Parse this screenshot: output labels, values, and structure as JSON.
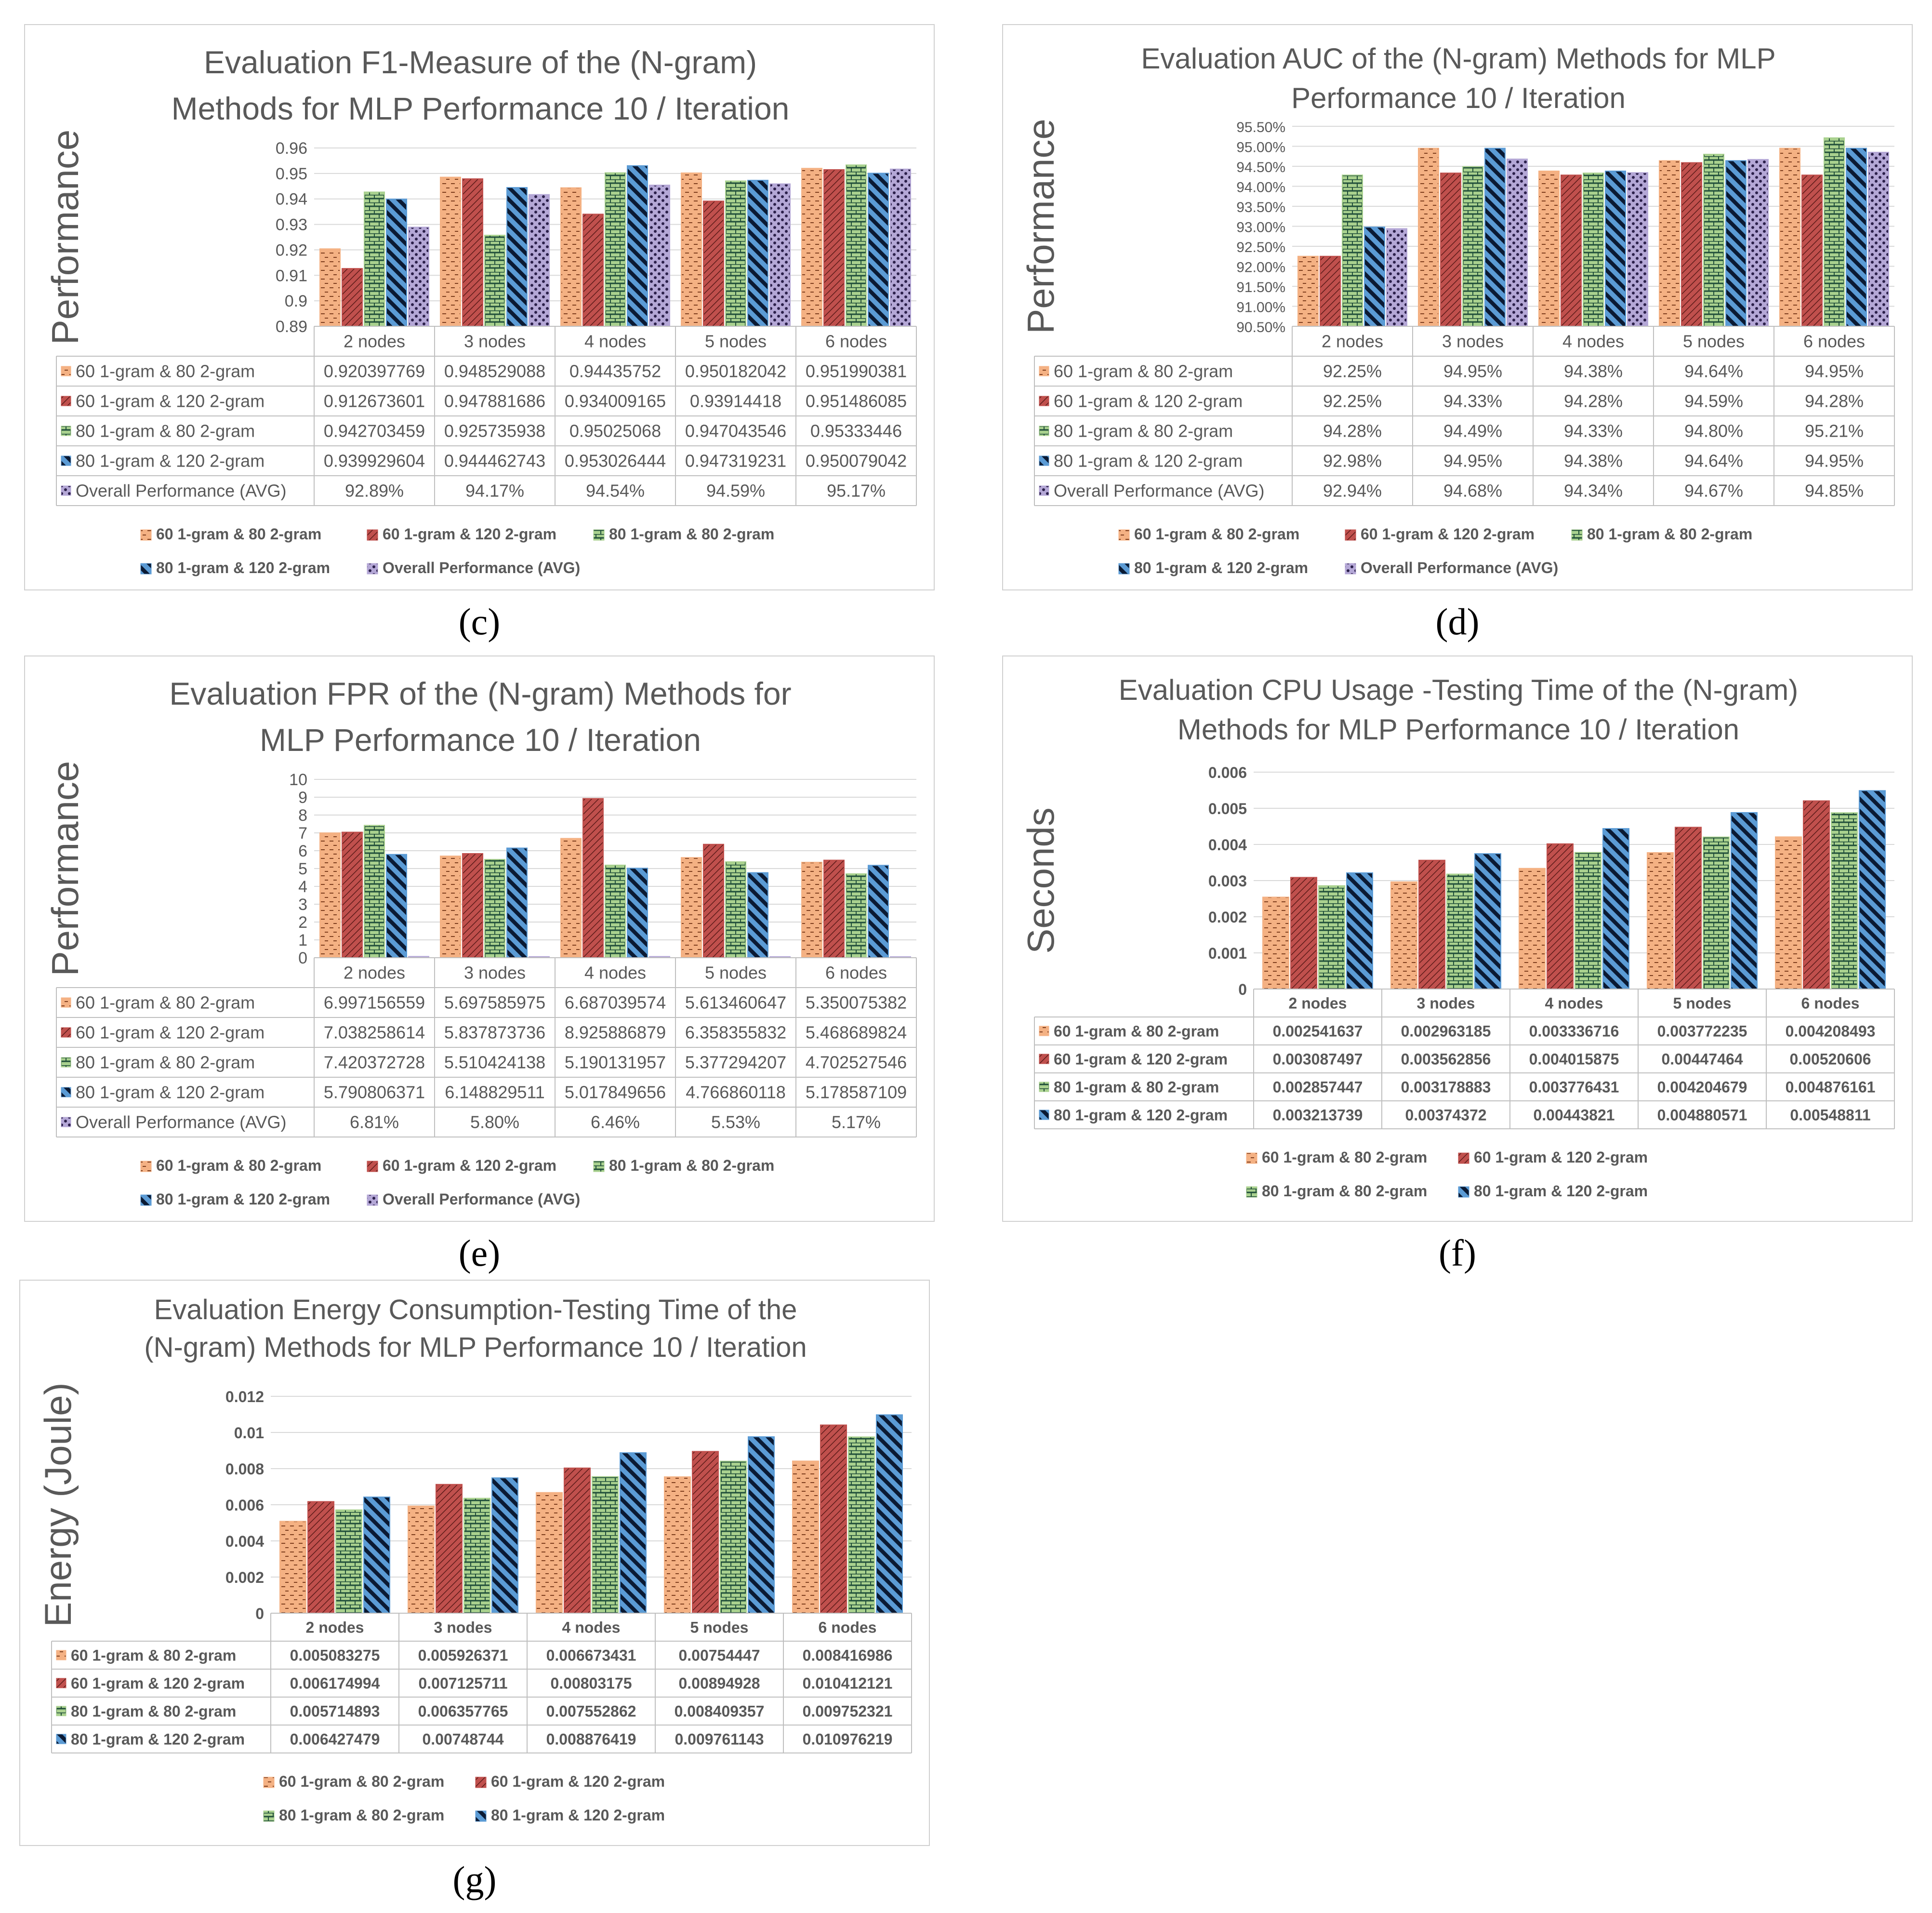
{
  "colors": {
    "s1": "#f4b183",
    "s2": "#c0504d",
    "s3": "#a9d18e",
    "s4": "#5b9bd5",
    "s5": "#b4a7d6",
    "grid": "#d9d9d9",
    "axis_text": "#595959"
  },
  "panels": [
    {
      "id": "c",
      "label": "(c)"
    },
    {
      "id": "d",
      "label": "(d)"
    },
    {
      "id": "e",
      "label": "(e)"
    },
    {
      "id": "f",
      "label": "(f)"
    },
    {
      "id": "g",
      "label": "(g)"
    }
  ],
  "chart_data": [
    {
      "type": "bar",
      "title": [
        "Evaluation F1-Measure of the (N-gram)",
        "Methods for MLP Performance  10 / Iteration"
      ],
      "ylabel": "Performance",
      "ylim": [
        0.89,
        0.96
      ],
      "yticks": [
        "0.89",
        "0.9",
        "0.91",
        "0.92",
        "0.93",
        "0.94",
        "0.95",
        "0.96"
      ],
      "categories": [
        "2 nodes",
        "3 nodes",
        "4 nodes",
        "5 nodes",
        "6 nodes"
      ],
      "series": [
        {
          "name": "60 1-gram & 80 2-gram",
          "values": [
            0.920397769,
            0.948529088,
            0.94435752,
            0.950182042,
            0.951990381
          ],
          "table": [
            "0.920397769",
            "0.948529088",
            "0.94435752",
            "0.950182042",
            "0.951990381"
          ]
        },
        {
          "name": "60 1-gram & 120 2-gram",
          "values": [
            0.912673601,
            0.947881686,
            0.934009165,
            0.93914418,
            0.951486085
          ],
          "table": [
            "0.912673601",
            "0.947881686",
            "0.934009165",
            "0.93914418",
            "0.951486085"
          ]
        },
        {
          "name": "80 1-gram & 80 2-gram",
          "values": [
            0.942703459,
            0.925735938,
            0.95025068,
            0.947043546,
            0.95333446
          ],
          "table": [
            "0.942703459",
            "0.925735938",
            "0.95025068",
            "0.947043546",
            "0.95333446"
          ]
        },
        {
          "name": "80 1-gram & 120 2-gram",
          "values": [
            0.939929604,
            0.944462743,
            0.953026444,
            0.947319231,
            0.950079042
          ],
          "table": [
            "0.939929604",
            "0.944462743",
            "0.953026444",
            "0.947319231",
            "0.950079042"
          ]
        },
        {
          "name": "Overall Performance (AVG)",
          "values": [
            0.9289,
            0.9417,
            0.9454,
            0.9459,
            0.9517
          ],
          "table": [
            "92.89%",
            "94.17%",
            "94.54%",
            "94.59%",
            "95.17%"
          ]
        }
      ]
    },
    {
      "type": "bar",
      "title": [
        "Evaluation AUC of the (N-gram) Methods for MLP",
        "Performance  10 / Iteration"
      ],
      "ylabel": "Performance",
      "ylim": [
        0.905,
        0.955
      ],
      "yticks": [
        "90.50%",
        "91.00%",
        "91.50%",
        "92.00%",
        "92.50%",
        "93.00%",
        "93.50%",
        "94.00%",
        "94.50%",
        "95.00%",
        "95.50%"
      ],
      "categories": [
        "2 nodes",
        "3 nodes",
        "4 nodes",
        "5 nodes",
        "6 nodes"
      ],
      "series": [
        {
          "name": "60 1-gram & 80 2-gram",
          "values": [
            0.9225,
            0.9495,
            0.9438,
            0.9464,
            0.9495
          ],
          "table": [
            "92.25%",
            "94.95%",
            "94.38%",
            "94.64%",
            "94.95%"
          ]
        },
        {
          "name": "60 1-gram & 120 2-gram",
          "values": [
            0.9225,
            0.9433,
            0.9428,
            0.9459,
            0.9428
          ],
          "table": [
            "92.25%",
            "94.33%",
            "94.28%",
            "94.59%",
            "94.28%"
          ]
        },
        {
          "name": "80 1-gram & 80 2-gram",
          "values": [
            0.9428,
            0.9449,
            0.9433,
            0.948,
            0.9521
          ],
          "table": [
            "94.28%",
            "94.49%",
            "94.33%",
            "94.80%",
            "95.21%"
          ]
        },
        {
          "name": "80 1-gram & 120 2-gram",
          "values": [
            0.9298,
            0.9495,
            0.9438,
            0.9464,
            0.9495
          ],
          "table": [
            "92.98%",
            "94.95%",
            "94.38%",
            "94.64%",
            "94.95%"
          ]
        },
        {
          "name": "Overall Performance (AVG)",
          "values": [
            0.9294,
            0.9468,
            0.9434,
            0.9467,
            0.9485
          ],
          "table": [
            "92.94%",
            "94.68%",
            "94.34%",
            "94.67%",
            "94.85%"
          ]
        }
      ]
    },
    {
      "type": "bar",
      "title": [
        "Evaluation FPR of the (N-gram) Methods for",
        "MLP Performance  10 / Iteration"
      ],
      "ylabel": "Performance",
      "ylim": [
        0,
        10
      ],
      "yticks": [
        "0",
        "1",
        "2",
        "3",
        "4",
        "5",
        "6",
        "7",
        "8",
        "9",
        "10"
      ],
      "categories": [
        "2 nodes",
        "3 nodes",
        "4 nodes",
        "5 nodes",
        "6 nodes"
      ],
      "series": [
        {
          "name": "60 1-gram & 80 2-gram",
          "values": [
            6.997156559,
            5.697585975,
            6.687039574,
            5.613460647,
            5.350075382
          ],
          "table": [
            "6.997156559",
            "5.697585975",
            "6.687039574",
            "5.613460647",
            "5.350075382"
          ]
        },
        {
          "name": "60 1-gram & 120 2-gram",
          "values": [
            7.038258614,
            5.837873736,
            8.925886879,
            6.358355832,
            5.468689824
          ],
          "table": [
            "7.038258614",
            "5.837873736",
            "8.925886879",
            "6.358355832",
            "5.468689824"
          ]
        },
        {
          "name": "80 1-gram & 80 2-gram",
          "values": [
            7.420372728,
            5.510424138,
            5.190131957,
            5.377294207,
            4.702527546
          ],
          "table": [
            "7.420372728",
            "5.510424138",
            "5.190131957",
            "5.377294207",
            "4.702527546"
          ]
        },
        {
          "name": "80 1-gram & 120 2-gram",
          "values": [
            5.790806371,
            6.148829511,
            5.017849656,
            4.766860118,
            5.178587109
          ],
          "table": [
            "5.790806371",
            "6.148829511",
            "5.017849656",
            "4.766860118",
            "5.178587109"
          ]
        },
        {
          "name": "Overall Performance (AVG)",
          "values": [
            0.0681,
            0.058,
            0.0646,
            0.0553,
            0.0517
          ],
          "table": [
            "6.81%",
            "5.80%",
            "6.46%",
            "5.53%",
            "5.17%"
          ]
        }
      ]
    },
    {
      "type": "bar",
      "title": [
        "Evaluation CPU Usage -Testing Time of the (N-gram)",
        "Methods for MLP Performance  10 / Iteration"
      ],
      "ylabel": "Seconds",
      "ylim": [
        0,
        0.006
      ],
      "yticks": [
        "0",
        "0.001",
        "0.002",
        "0.003",
        "0.004",
        "0.005",
        "0.006"
      ],
      "categories": [
        "2 nodes",
        "3 nodes",
        "4 nodes",
        "5 nodes",
        "6 nodes"
      ],
      "series": [
        {
          "name": "60 1-gram & 80 2-gram",
          "values": [
            0.002541637,
            0.002963185,
            0.003336716,
            0.003772235,
            0.004208493
          ],
          "table": [
            "0.002541637",
            "0.002963185",
            "0.003336716",
            "0.003772235",
            "0.004208493"
          ]
        },
        {
          "name": "60 1-gram & 120 2-gram",
          "values": [
            0.003087497,
            0.003562856,
            0.004015875,
            0.00447464,
            0.00520606
          ],
          "table": [
            "0.003087497",
            "0.003562856",
            "0.004015875",
            "0.00447464",
            "0.00520606"
          ]
        },
        {
          "name": "80 1-gram & 80 2-gram",
          "values": [
            0.002857447,
            0.003178883,
            0.003776431,
            0.004204679,
            0.004876161
          ],
          "table": [
            "0.002857447",
            "0.003178883",
            "0.003776431",
            "0.004204679",
            "0.004876161"
          ]
        },
        {
          "name": "80 1-gram & 120 2-gram",
          "values": [
            0.003213739,
            0.00374372,
            0.00443821,
            0.004880571,
            0.00548811
          ],
          "table": [
            "0.003213739",
            "0.00374372",
            "0.00443821",
            "0.004880571",
            "0.00548811"
          ]
        }
      ]
    },
    {
      "type": "bar",
      "title": [
        "Evaluation Energy Consumption-Testing Time of the",
        "(N-gram) Methods for MLP Performance 10 / Iteration"
      ],
      "ylabel": "Energy (Joule)",
      "ylim": [
        0,
        0.012
      ],
      "yticks": [
        "0",
        "0.002",
        "0.004",
        "0.006",
        "0.008",
        "0.01",
        "0.012"
      ],
      "categories": [
        "2 nodes",
        "3 nodes",
        "4 nodes",
        "5 nodes",
        "6 nodes"
      ],
      "series": [
        {
          "name": "60 1-gram & 80 2-gram",
          "values": [
            0.005083275,
            0.005926371,
            0.006673431,
            0.00754447,
            0.008416986
          ],
          "table": [
            "0.005083275",
            "0.005926371",
            "0.006673431",
            "0.00754447",
            "0.008416986"
          ]
        },
        {
          "name": "60 1-gram & 120 2-gram",
          "values": [
            0.006174994,
            0.007125711,
            0.00803175,
            0.00894928,
            0.010412121
          ],
          "table": [
            "0.006174994",
            "0.007125711",
            "0.00803175",
            "0.00894928",
            "0.010412121"
          ]
        },
        {
          "name": "80 1-gram & 80 2-gram",
          "values": [
            0.005714893,
            0.006357765,
            0.007552862,
            0.008409357,
            0.009752321
          ],
          "table": [
            "0.005714893",
            "0.006357765",
            "0.007552862",
            "0.008409357",
            "0.009752321"
          ]
        },
        {
          "name": "80 1-gram & 120 2-gram",
          "values": [
            0.006427479,
            0.00748744,
            0.008876419,
            0.009761143,
            0.010976219
          ],
          "table": [
            "0.006427479",
            "0.00748744",
            "0.008876419",
            "0.009761143",
            "0.010976219"
          ]
        }
      ]
    }
  ]
}
